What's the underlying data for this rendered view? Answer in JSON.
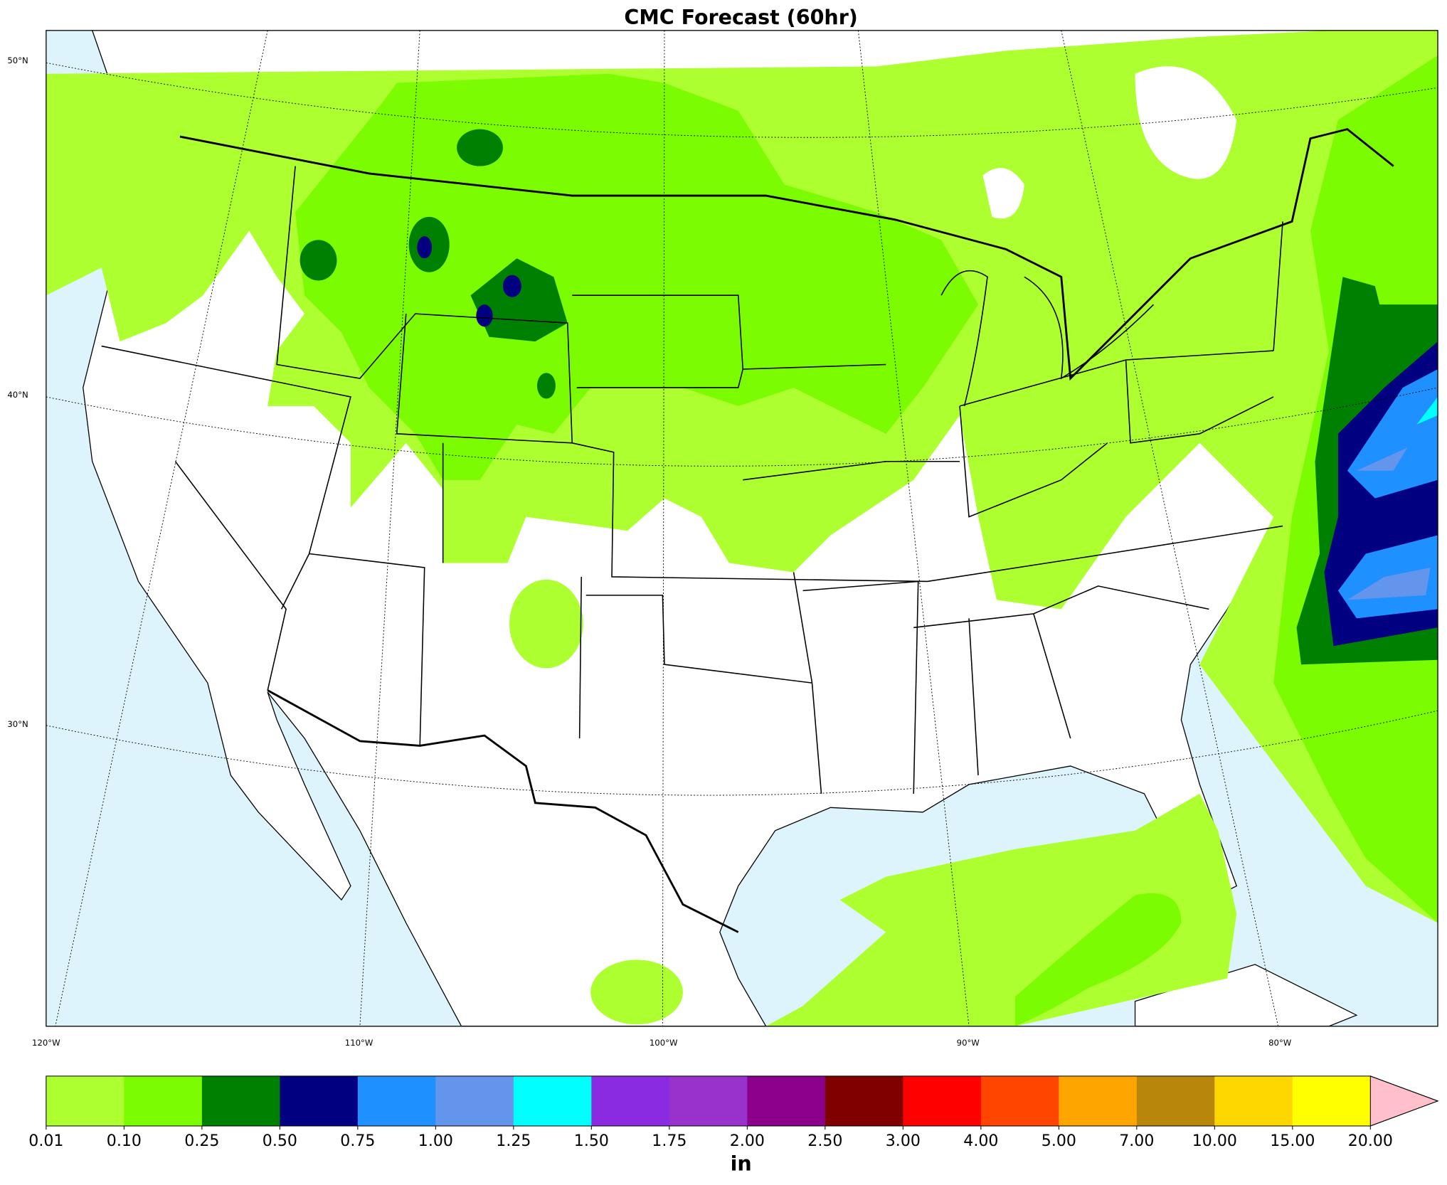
{
  "title": "CMC Forecast (60hr)",
  "map": {
    "lat_labels": [
      "50°N",
      "40°N",
      "30°N"
    ],
    "lon_labels": [
      "120°W",
      "110°W",
      "100°W",
      "90°W",
      "80°W"
    ]
  },
  "colorbar": {
    "ticks": [
      "0.01",
      "0.10",
      "0.25",
      "0.50",
      "0.75",
      "1.00",
      "1.25",
      "1.50",
      "1.75",
      "2.00",
      "2.50",
      "3.00",
      "4.00",
      "5.00",
      "7.00",
      "10.00",
      "15.00",
      "20.00"
    ],
    "colors": [
      "#adff2f",
      "#7cfc00",
      "#008000",
      "#000080",
      "#1e90ff",
      "#6495ed",
      "#00ffff",
      "#8a2be2",
      "#9932cc",
      "#8b008b",
      "#800000",
      "#ff0000",
      "#ff4500",
      "#ffa500",
      "#b8860b",
      "#ffd700",
      "#ffff00"
    ],
    "extend_color": "#ffc0cb",
    "unit": "in"
  }
}
